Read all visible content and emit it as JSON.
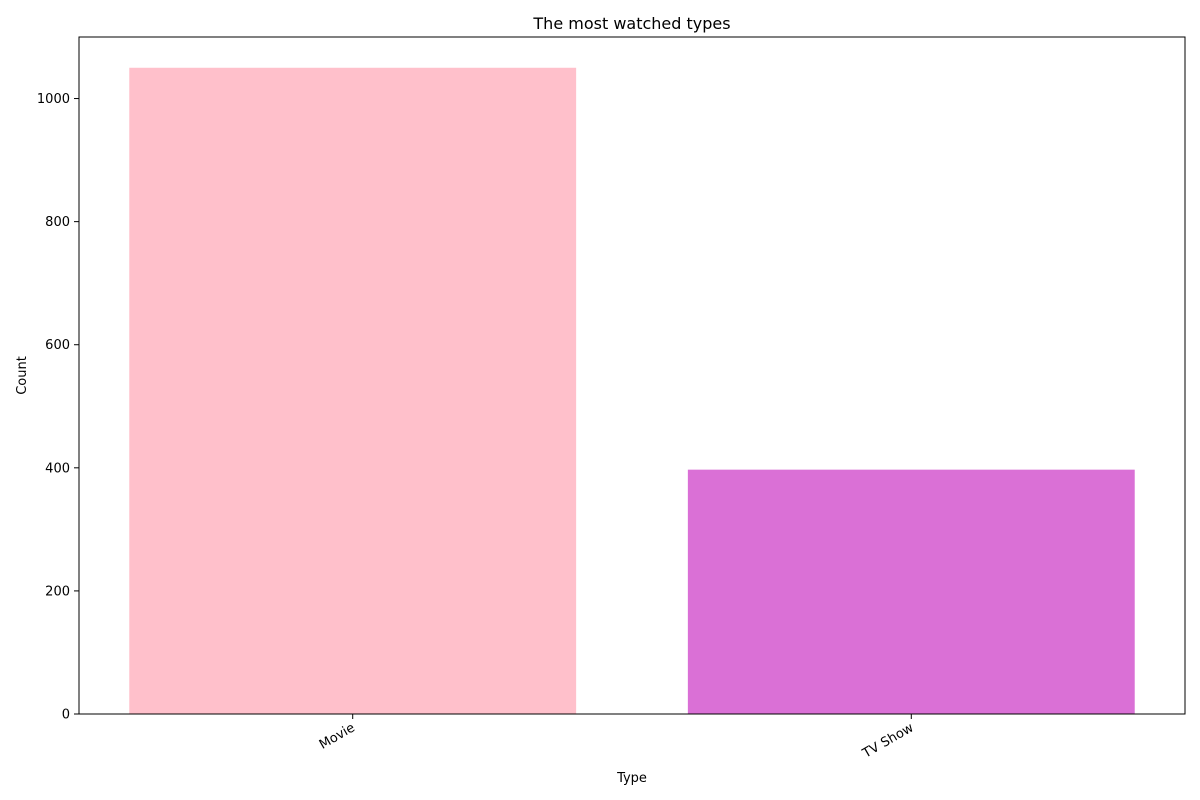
{
  "chart_data": {
    "type": "bar",
    "title": "The most watched types",
    "xlabel": "Type",
    "ylabel": "Count",
    "categories": [
      "Movie",
      "TV Show"
    ],
    "values": [
      1050,
      397
    ],
    "colors": [
      "#ffc0cb",
      "#da70d6"
    ],
    "ylim": [
      0,
      1100
    ],
    "yticks": [
      0,
      200,
      400,
      600,
      800,
      1000
    ],
    "grid": false,
    "xtick_rotation": "rotated about 30 degrees, right-aligned"
  }
}
